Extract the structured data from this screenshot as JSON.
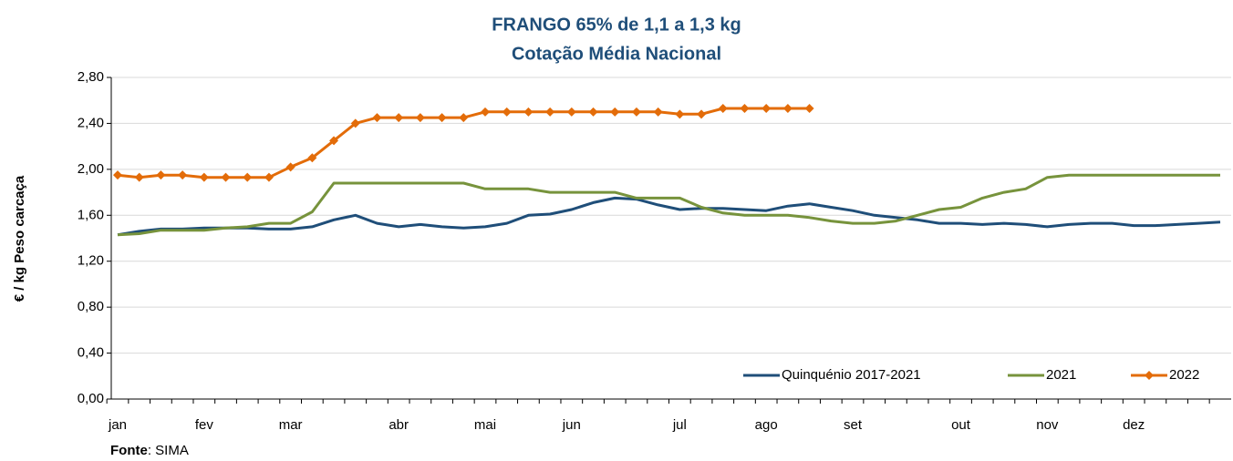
{
  "chart_data": {
    "type": "line",
    "title": "FRANGO 65% de 1,1 a 1,3 kg",
    "subtitle": "Cotação Média Nacional",
    "y_label": "€ / kg Peso carcaça",
    "source_label": "Fonte",
    "source": ": SIMA",
    "categories": [
      "jan",
      null,
      null,
      null,
      "fev",
      null,
      null,
      null,
      "mar",
      null,
      null,
      null,
      null,
      "abr",
      null,
      null,
      null,
      "mai",
      null,
      null,
      null,
      "jun",
      null,
      null,
      null,
      null,
      "jul",
      null,
      null,
      null,
      "ago",
      null,
      null,
      null,
      "set",
      null,
      null,
      null,
      null,
      "out",
      null,
      null,
      null,
      "nov",
      null,
      null,
      null,
      "dez",
      null,
      null,
      null,
      null
    ],
    "ylim": [
      0,
      2.8
    ],
    "yticks": [
      {
        "value": 0,
        "label": "0,00"
      },
      {
        "value": 0.4,
        "label": "0,40"
      },
      {
        "value": 0.8,
        "label": "0,80"
      },
      {
        "value": 1.2,
        "label": "1,20"
      },
      {
        "value": 1.6,
        "label": "1,60"
      },
      {
        "value": 2.0,
        "label": "2,00"
      },
      {
        "value": 2.4,
        "label": "2,40"
      },
      {
        "value": 2.8,
        "label": "2,80"
      }
    ],
    "grid": true,
    "legend": "bottom-right",
    "series": [
      {
        "name": "Quinquénio 2017-2021",
        "color": "#1f4e79",
        "marker": "none",
        "values": [
          1.43,
          1.46,
          1.48,
          1.48,
          1.49,
          1.49,
          1.49,
          1.48,
          1.48,
          1.5,
          1.56,
          1.6,
          1.53,
          1.5,
          1.52,
          1.5,
          1.49,
          1.5,
          1.53,
          1.6,
          1.61,
          1.65,
          1.71,
          1.75,
          1.74,
          1.69,
          1.65,
          1.66,
          1.66,
          1.65,
          1.64,
          1.68,
          1.7,
          1.67,
          1.64,
          1.6,
          1.58,
          1.56,
          1.53,
          1.53,
          1.52,
          1.53,
          1.52,
          1.5,
          1.52,
          1.53,
          1.53,
          1.51,
          1.51,
          1.52,
          1.53,
          1.54
        ]
      },
      {
        "name": "2021",
        "color": "#77933c",
        "marker": "none",
        "values": [
          1.43,
          1.44,
          1.47,
          1.47,
          1.47,
          1.49,
          1.5,
          1.53,
          1.53,
          1.63,
          1.88,
          1.88,
          1.88,
          1.88,
          1.88,
          1.88,
          1.88,
          1.83,
          1.83,
          1.83,
          1.8,
          1.8,
          1.8,
          1.8,
          1.75,
          1.75,
          1.75,
          1.67,
          1.62,
          1.6,
          1.6,
          1.6,
          1.58,
          1.55,
          1.53,
          1.53,
          1.55,
          1.6,
          1.65,
          1.67,
          1.75,
          1.8,
          1.83,
          1.93,
          1.95,
          1.95,
          1.95,
          1.95,
          1.95,
          1.95,
          1.95,
          1.95
        ]
      },
      {
        "name": "2022",
        "color": "#e36c09",
        "marker": "diamond",
        "values": [
          1.95,
          1.93,
          1.95,
          1.95,
          1.93,
          1.93,
          1.93,
          1.93,
          2.02,
          2.1,
          2.25,
          2.4,
          2.45,
          2.45,
          2.45,
          2.45,
          2.45,
          2.5,
          2.5,
          2.5,
          2.5,
          2.5,
          2.5,
          2.5,
          2.5,
          2.5,
          2.48,
          2.48,
          2.53,
          2.53,
          2.53,
          2.53,
          2.53,
          null,
          null,
          null,
          null,
          null,
          null,
          null,
          null,
          null,
          null,
          null,
          null,
          null,
          null,
          null,
          null,
          null,
          null,
          null
        ]
      }
    ]
  }
}
